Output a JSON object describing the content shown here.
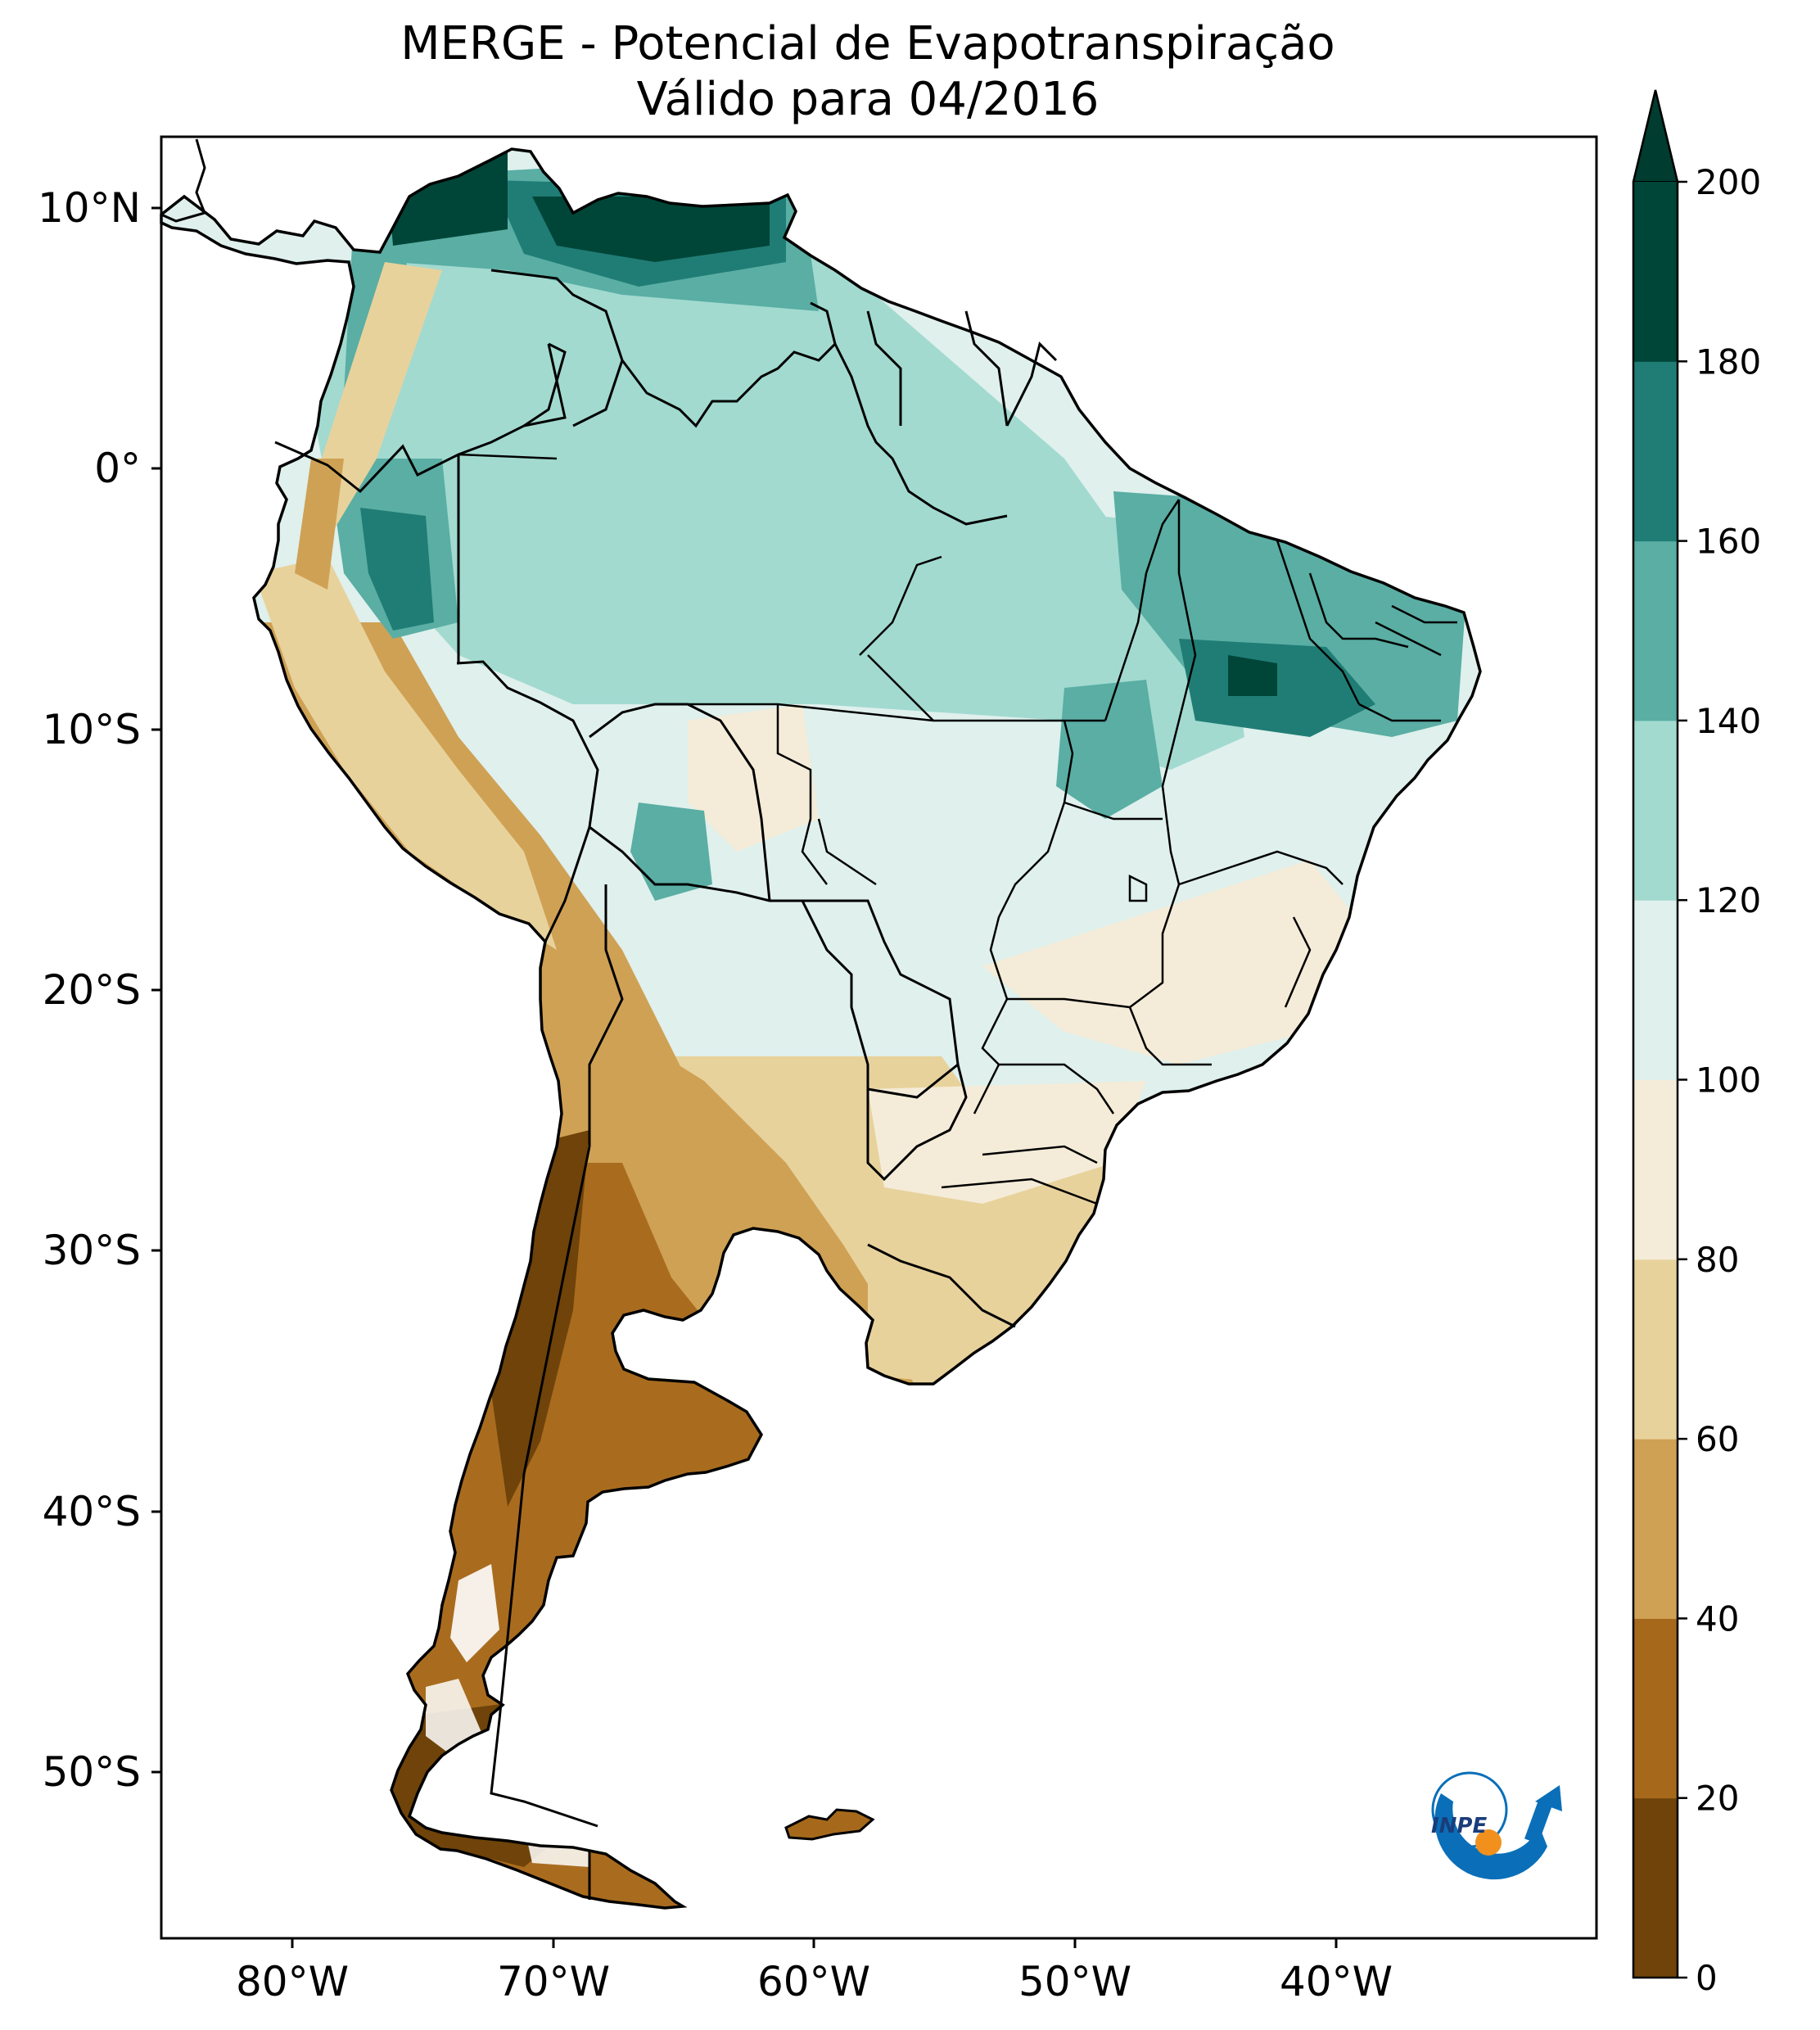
{
  "title": {
    "line1": "MERGE - Potencial de Evapotranspiração",
    "line2": "Válido para 04/2016"
  },
  "map": {
    "lat_ticks": [
      "10°N",
      "0°",
      "10°S",
      "20°S",
      "30°S",
      "40°S",
      "50°S"
    ],
    "lon_ticks": [
      "80°W",
      "70°W",
      "60°W",
      "50°W",
      "40°W"
    ],
    "lon_range": [
      -85,
      -30
    ],
    "lat_range": [
      -56,
      13
    ]
  },
  "colorbar": {
    "ticks": [
      "0",
      "20",
      "40",
      "60",
      "80",
      "100",
      "120",
      "140",
      "160",
      "180",
      "200"
    ],
    "colors": [
      "#6f4309",
      "#a6691c",
      "#cfa155",
      "#e8d29c",
      "#f4ecd8",
      "#dff0ed",
      "#a2dad0",
      "#5aaea4",
      "#207d75",
      "#004638"
    ],
    "extend_max_color": "#003c2f"
  },
  "logo": {
    "text": "INPE",
    "colors": {
      "blue": "#0a6fb8",
      "orange": "#f2901e"
    }
  }
}
